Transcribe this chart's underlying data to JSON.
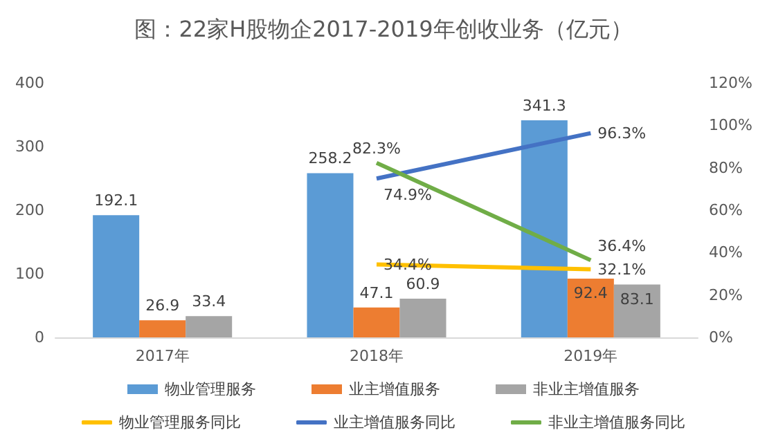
{
  "chart_data": {
    "type": "bar",
    "title": "图：22家H股物企2017-2019年创收业务（亿元）",
    "categories": [
      "2017年",
      "2018年",
      "2019年"
    ],
    "series": [
      {
        "name": "物业管理服务",
        "color": "#5b9bd5",
        "values": [
          192.1,
          258.2,
          341.3
        ],
        "value_labels": [
          "192.1",
          "258.2",
          "341.3"
        ]
      },
      {
        "name": "业主增值服务",
        "color": "#ed7d31",
        "values": [
          26.9,
          47.1,
          92.4
        ],
        "value_labels": [
          "26.9",
          "47.1",
          "92.4"
        ]
      },
      {
        "name": "非业主增值服务",
        "color": "#a5a5a5",
        "values": [
          33.4,
          60.9,
          83.1
        ],
        "value_labels": [
          "33.4",
          "60.9",
          "83.1"
        ]
      },
      {
        "name": "物业管理服务同比",
        "type": "line",
        "axis": "y2",
        "color": "#ffc000",
        "values": [
          null,
          34.4,
          32.1
        ],
        "value_labels": [
          null,
          "34.4%",
          "32.1%"
        ]
      },
      {
        "name": "业主增值服务同比",
        "type": "line",
        "axis": "y2",
        "color": "#4472c4",
        "values": [
          null,
          74.9,
          96.3
        ],
        "value_labels": [
          null,
          "74.9%",
          "96.3%"
        ]
      },
      {
        "name": "非业主增值服务同比",
        "type": "line",
        "axis": "y2",
        "color": "#70ad47",
        "values": [
          null,
          82.3,
          36.4
        ],
        "value_labels": [
          null,
          "82.3%",
          "36.4%"
        ]
      }
    ],
    "ylim": [
      0,
      400
    ],
    "yticks": [
      0,
      100,
      200,
      300,
      400
    ],
    "y2lim": [
      0,
      120
    ],
    "y2ticks": [
      {
        "value": 0,
        "label": "0%"
      },
      {
        "value": 20,
        "label": "20%"
      },
      {
        "value": 40,
        "label": "40%"
      },
      {
        "value": 60,
        "label": "60%"
      },
      {
        "value": 80,
        "label": "80%"
      },
      {
        "value": 100,
        "label": "100%"
      },
      {
        "value": 120,
        "label": "120%"
      }
    ],
    "grid": false,
    "legend": "bottom",
    "marker": "none",
    "line_style": "solid"
  }
}
